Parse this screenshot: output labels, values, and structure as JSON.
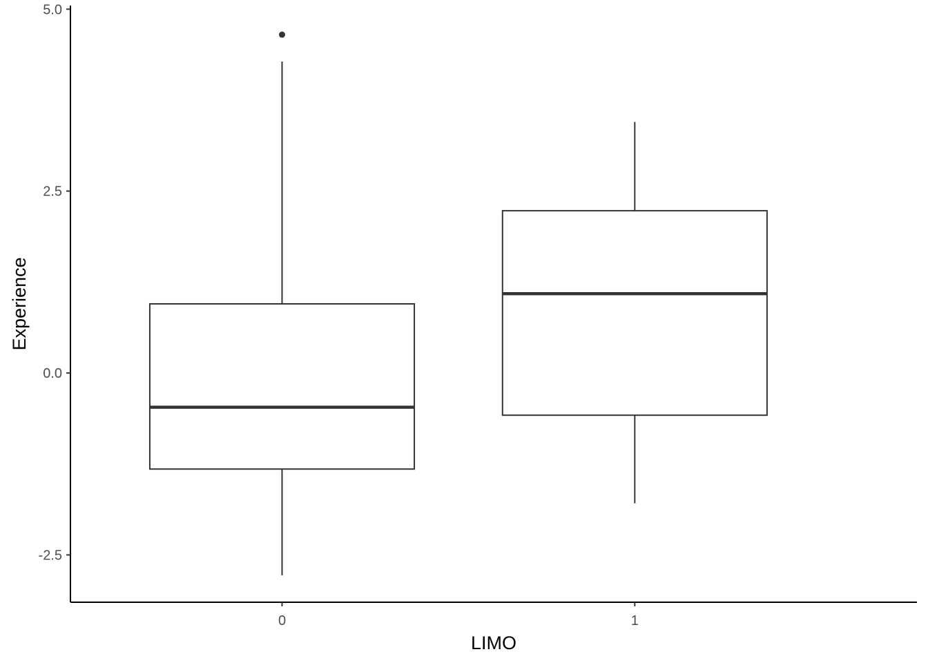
{
  "chart_data": {
    "type": "boxplot",
    "xlabel": "LIMO",
    "ylabel": "Experience",
    "categories": [
      "0",
      "1"
    ],
    "ylim": [
      -3.15,
      5.05
    ],
    "yticks": [
      -2.5,
      0.0,
      2.5,
      5.0
    ],
    "ytick_labels": [
      "-2.5",
      "0.0",
      "2.5",
      "5.0"
    ],
    "boxes": [
      {
        "category": "0",
        "whisker_low": -2.78,
        "q1": -1.32,
        "median": -0.47,
        "q3": 0.95,
        "whisker_high": 4.28,
        "outliers": [
          4.65
        ]
      },
      {
        "category": "1",
        "whisker_low": -1.79,
        "q1": -0.58,
        "median": 1.09,
        "q3": 2.23,
        "whisker_high": 3.45,
        "outliers": []
      }
    ],
    "grid": false,
    "legend": "none",
    "colors": {
      "box_stroke": "#333333",
      "box_fill": "#ffffff",
      "axis": "#000000",
      "tick_label": "#4d4d4d"
    }
  }
}
